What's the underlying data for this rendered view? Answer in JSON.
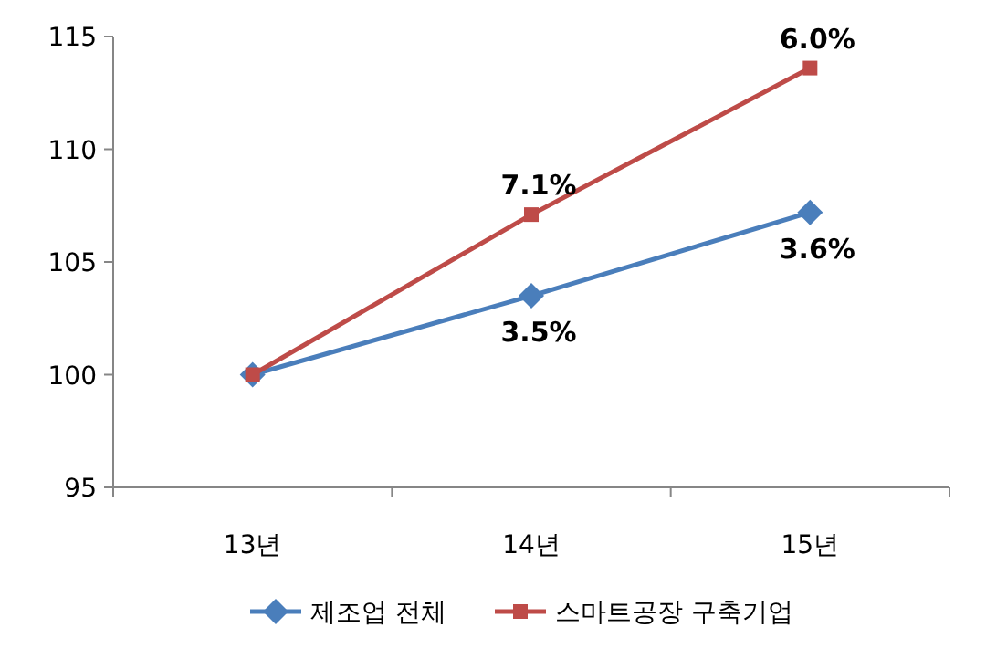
{
  "chart_data": {
    "type": "line",
    "categories": [
      "13년",
      "14년",
      "15년"
    ],
    "series": [
      {
        "name": "제조업 전체",
        "color": "#4a7ebb",
        "marker": "diamond",
        "values": [
          100,
          103.5,
          107.2
        ]
      },
      {
        "name": "스마트공장 구축기업",
        "color": "#be4b48",
        "marker": "square",
        "values": [
          100,
          107.1,
          113.6
        ]
      }
    ],
    "ylim": [
      95,
      115
    ],
    "yticks": [
      95,
      100,
      105,
      110,
      115
    ],
    "legend": "bottom",
    "grid": false,
    "annotations": [
      {
        "text": "3.5%",
        "x": "14년",
        "y": 103.5
      },
      {
        "text": "3.6%",
        "x": "15년",
        "y": 107.2
      },
      {
        "text": "7.1%",
        "x": "14년",
        "y": 107.1
      },
      {
        "text": "6.0%",
        "x": "15년",
        "y": 113.6
      }
    ]
  }
}
